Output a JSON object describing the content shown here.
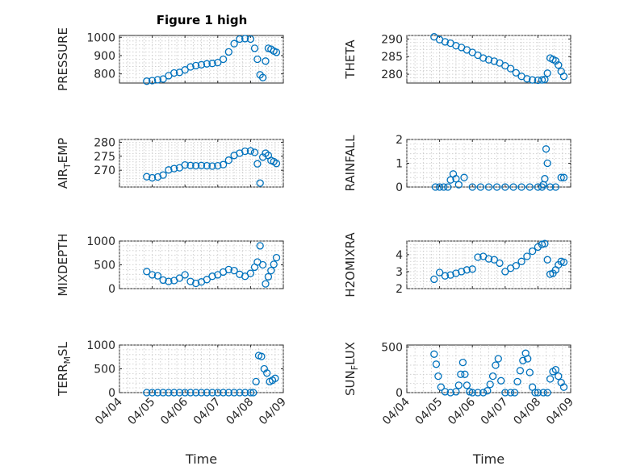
{
  "figure": {
    "title": "Figure 1 high",
    "colors": {
      "marker": "#0072bd",
      "axis": "#262626",
      "grid": "#c8c8c8"
    }
  },
  "chart_data": [
    {
      "type": "scatter",
      "ylabel": "PRESSURE",
      "ylim": [
        750,
        1010
      ],
      "yticks": [
        "800",
        "900",
        "1000"
      ],
      "xlim": [
        "04/04",
        "04/09"
      ],
      "grid": true,
      "series": [
        {
          "x": [
            "04/04 20:00",
            "04/05 00:00",
            "04/05 04:00",
            "04/05 08:00",
            "04/05 12:00",
            "04/05 16:00",
            "04/05 20:00",
            "04/06 00:00",
            "04/06 04:00",
            "04/06 08:00",
            "04/06 12:00",
            "04/06 16:00",
            "04/06 20:00",
            "04/07 00:00",
            "04/07 04:00",
            "04/07 08:00",
            "04/07 12:00",
            "04/07 16:00",
            "04/07 20:00",
            "04/08 00:00",
            "04/08 03:00",
            "04/08 05:00",
            "04/08 07:00",
            "04/08 09:00",
            "04/08 11:00",
            "04/08 13:00",
            "04/08 15:00",
            "04/08 17:00",
            "04/08 19:00"
          ],
          "y": [
            760,
            763,
            768,
            772,
            790,
            805,
            808,
            822,
            838,
            845,
            850,
            855,
            857,
            862,
            880,
            920,
            965,
            990,
            993,
            990,
            940,
            880,
            795,
            780,
            870,
            940,
            935,
            925,
            918
          ]
        }
      ]
    },
    {
      "type": "scatter",
      "ylabel": "THETA",
      "ylim": [
        277.5,
        291
      ],
      "yticks": [
        "280",
        "285",
        "290"
      ],
      "xlim": [
        "04/04",
        "04/09"
      ],
      "grid": true,
      "series": [
        {
          "x": [
            "04/04 20:00",
            "04/05 00:00",
            "04/05 04:00",
            "04/05 08:00",
            "04/05 12:00",
            "04/05 16:00",
            "04/05 20:00",
            "04/06 00:00",
            "04/06 04:00",
            "04/06 08:00",
            "04/06 12:00",
            "04/06 16:00",
            "04/06 20:00",
            "04/07 00:00",
            "04/07 04:00",
            "04/07 08:00",
            "04/07 12:00",
            "04/07 16:00",
            "04/07 20:00",
            "04/08 00:00",
            "04/08 03:00",
            "04/08 05:00",
            "04/08 07:00",
            "04/08 09:00",
            "04/08 11:00",
            "04/08 13:00",
            "04/08 15:00",
            "04/08 17:00",
            "04/08 19:00"
          ],
          "y": [
            290.6,
            289.8,
            289.2,
            288.8,
            288.1,
            287.6,
            286.9,
            286.2,
            285.4,
            284.6,
            284.1,
            283.7,
            283.2,
            282.4,
            281.6,
            280.4,
            279.4,
            278.7,
            278.4,
            278.3,
            278.4,
            278.5,
            280.3,
            284.6,
            284.2,
            283.8,
            282.6,
            280.8,
            279.4
          ]
        }
      ]
    },
    {
      "type": "scatter",
      "ylabel": "AIR_TEMP",
      "ylim": [
        264,
        281
      ],
      "yticks": [
        "270",
        "275",
        "280"
      ],
      "xlim": [
        "04/04",
        "04/09"
      ],
      "grid": true,
      "series": [
        {
          "x": [
            "04/04 20:00",
            "04/05 00:00",
            "04/05 04:00",
            "04/05 08:00",
            "04/05 12:00",
            "04/05 16:00",
            "04/05 20:00",
            "04/06 00:00",
            "04/06 04:00",
            "04/06 08:00",
            "04/06 12:00",
            "04/06 16:00",
            "04/06 20:00",
            "04/07 00:00",
            "04/07 04:00",
            "04/07 08:00",
            "04/07 12:00",
            "04/07 16:00",
            "04/07 20:00",
            "04/08 00:00",
            "04/08 03:00",
            "04/08 05:00",
            "04/08 07:00",
            "04/08 09:00",
            "04/08 11:00",
            "04/08 13:00",
            "04/08 15:00",
            "04/08 17:00",
            "04/08 19:00"
          ],
          "y": [
            267.7,
            267.3,
            267.6,
            268.3,
            270.1,
            270.6,
            270.9,
            271.9,
            271.7,
            271.6,
            271.7,
            271.6,
            271.5,
            271.6,
            272.0,
            273.6,
            275.3,
            276.1,
            276.8,
            276.9,
            276.4,
            272.3,
            265.4,
            274.7,
            276.1,
            275.3,
            273.5,
            273.1,
            272.4
          ]
        }
      ]
    },
    {
      "type": "scatter",
      "ylabel": "RAINFALL",
      "ylim": [
        0,
        2
      ],
      "yticks": [
        "0",
        "1",
        "2"
      ],
      "xlim": [
        "04/04",
        "04/09"
      ],
      "grid": true,
      "series": [
        {
          "x": [
            "04/04 21:00",
            "04/05 00:00",
            "04/05 03:00",
            "04/05 06:00",
            "04/05 08:00",
            "04/05 10:00",
            "04/05 12:00",
            "04/05 14:00",
            "04/05 18:00",
            "04/06 00:00",
            "04/06 06:00",
            "04/06 12:00",
            "04/06 18:00",
            "04/07 00:00",
            "04/07 06:00",
            "04/07 12:00",
            "04/07 18:00",
            "04/08 00:00",
            "04/08 03:00",
            "04/08 04:00",
            "04/08 05:00",
            "04/08 06:00",
            "04/08 07:00",
            "04/08 09:00",
            "04/08 13:00",
            "04/08 17:00",
            "04/08 19:00"
          ],
          "y": [
            0,
            0,
            0,
            0,
            0.3,
            0.55,
            0.35,
            0.1,
            0.4,
            0,
            0,
            0,
            0,
            0,
            0,
            0,
            0,
            0,
            0,
            0.1,
            0.35,
            1.6,
            1.0,
            0,
            0,
            0.4,
            0.4
          ]
        }
      ]
    },
    {
      "type": "scatter",
      "ylabel": "MIXDEPTH",
      "ylim": [
        0,
        1000
      ],
      "yticks": [
        "0",
        "500",
        "1000"
      ],
      "xlim": [
        "04/04",
        "04/09"
      ],
      "grid": true,
      "series": [
        {
          "x": [
            "04/04 20:00",
            "04/05 00:00",
            "04/05 04:00",
            "04/05 08:00",
            "04/05 12:00",
            "04/05 16:00",
            "04/05 20:00",
            "04/06 00:00",
            "04/06 04:00",
            "04/06 08:00",
            "04/06 12:00",
            "04/06 16:00",
            "04/06 20:00",
            "04/07 00:00",
            "04/07 04:00",
            "04/07 08:00",
            "04/07 12:00",
            "04/07 16:00",
            "04/07 20:00",
            "04/08 00:00",
            "04/08 03:00",
            "04/08 05:00",
            "04/08 07:00",
            "04/08 09:00",
            "04/08 11:00",
            "04/08 13:00",
            "04/08 15:00",
            "04/08 17:00",
            "04/08 19:00"
          ],
          "y": [
            360,
            290,
            270,
            180,
            150,
            170,
            220,
            290,
            150,
            110,
            140,
            190,
            260,
            290,
            350,
            400,
            380,
            300,
            260,
            320,
            450,
            560,
            900,
            500,
            100,
            250,
            380,
            510,
            650
          ]
        }
      ]
    },
    {
      "type": "scatter",
      "ylabel": "H2OMIXRA",
      "ylim": [
        2,
        4.8
      ],
      "yticks": [
        "2",
        "3",
        "4"
      ],
      "xlim": [
        "04/04",
        "04/09"
      ],
      "grid": true,
      "series": [
        {
          "x": [
            "04/04 20:00",
            "04/05 00:00",
            "04/05 04:00",
            "04/05 08:00",
            "04/05 12:00",
            "04/05 16:00",
            "04/05 20:00",
            "04/06 00:00",
            "04/06 04:00",
            "04/06 08:00",
            "04/06 12:00",
            "04/06 16:00",
            "04/06 20:00",
            "04/07 00:00",
            "04/07 04:00",
            "04/07 08:00",
            "04/07 12:00",
            "04/07 16:00",
            "04/07 20:00",
            "04/08 00:00",
            "04/08 03:00",
            "04/08 05:00",
            "04/08 07:00",
            "04/08 09:00",
            "04/08 11:00",
            "04/08 13:00",
            "04/08 15:00",
            "04/08 17:00",
            "04/08 19:00"
          ],
          "y": [
            2.55,
            2.95,
            2.75,
            2.8,
            2.9,
            3.0,
            3.1,
            3.15,
            3.85,
            3.9,
            3.75,
            3.7,
            3.5,
            3.0,
            3.2,
            3.35,
            3.6,
            3.9,
            4.2,
            4.45,
            4.6,
            4.65,
            3.7,
            2.85,
            2.9,
            3.1,
            3.4,
            3.6,
            3.55
          ]
        }
      ]
    },
    {
      "type": "scatter",
      "ylabel": "TERR_MSL",
      "ylim": [
        0,
        1000
      ],
      "yticks": [
        "0",
        "500",
        "1000"
      ],
      "xlim": [
        "04/04",
        "04/09"
      ],
      "grid": true,
      "series": [
        {
          "x": [
            "04/04 20:00",
            "04/05 00:00",
            "04/05 04:00",
            "04/05 08:00",
            "04/05 12:00",
            "04/05 16:00",
            "04/05 20:00",
            "04/06 00:00",
            "04/06 04:00",
            "04/06 08:00",
            "04/06 12:00",
            "04/06 16:00",
            "04/06 20:00",
            "04/07 00:00",
            "04/07 04:00",
            "04/07 08:00",
            "04/07 12:00",
            "04/07 16:00",
            "04/07 20:00",
            "04/08 00:00",
            "04/08 02:00",
            "04/08 04:00",
            "04/08 06:00",
            "04/08 08:00",
            "04/08 10:00",
            "04/08 12:00",
            "04/08 14:00",
            "04/08 16:00",
            "04/08 18:00"
          ],
          "y": [
            0,
            0,
            0,
            0,
            0,
            0,
            0,
            0,
            0,
            0,
            0,
            0,
            0,
            0,
            0,
            0,
            0,
            0,
            0,
            0,
            0,
            230,
            780,
            760,
            500,
            410,
            230,
            260,
            300
          ]
        }
      ]
    },
    {
      "type": "scatter",
      "ylabel": "SUN_FLUX",
      "ylim": [
        0,
        520
      ],
      "yticks": [
        "0",
        "500"
      ],
      "xlim": [
        "04/04",
        "04/09"
      ],
      "grid": true,
      "series": [
        {
          "x": [
            "04/04 20:00",
            "04/04 21:30",
            "04/04 23:00",
            "04/05 01:00",
            "04/05 04:00",
            "04/05 08:00",
            "04/05 12:00",
            "04/05 14:00",
            "04/05 15:30",
            "04/05 17:00",
            "04/05 18:30",
            "04/05 20:00",
            "04/05 22:00",
            "04/06 00:00",
            "04/06 04:00",
            "04/06 08:00",
            "04/06 11:00",
            "04/06 13:00",
            "04/06 15:00",
            "04/06 17:00",
            "04/06 19:00",
            "04/06 21:00",
            "04/07 00:00",
            "04/07 04:00",
            "04/07 07:00",
            "04/07 09:00",
            "04/07 11:00",
            "04/07 13:00",
            "04/07 15:00",
            "04/07 16:30",
            "04/07 18:00",
            "04/07 20:00",
            "04/07 22:00",
            "04/08 00:00",
            "04/08 04:00",
            "04/08 07:00",
            "04/08 09:00",
            "04/08 11:00",
            "04/08 13:00",
            "04/08 15:00",
            "04/08 17:00",
            "04/08 19:00"
          ],
          "y": [
            420,
            310,
            180,
            60,
            10,
            0,
            10,
            80,
            200,
            330,
            200,
            80,
            10,
            0,
            0,
            0,
            20,
            90,
            180,
            300,
            370,
            130,
            0,
            0,
            0,
            120,
            240,
            350,
            430,
            370,
            220,
            60,
            0,
            0,
            0,
            0,
            150,
            230,
            250,
            180,
            110,
            60
          ]
        }
      ]
    }
  ],
  "x_tick_labels": [
    "04/04",
    "04/05",
    "04/06",
    "04/07",
    "04/08",
    "04/09"
  ],
  "x_axis_label": "Time"
}
